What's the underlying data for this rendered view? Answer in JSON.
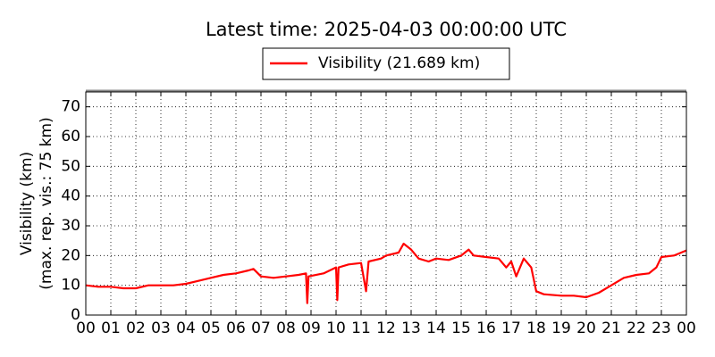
{
  "chart_data": {
    "type": "line",
    "title": "Latest time: 2025-04-03 00:00:00 UTC",
    "ylabel": [
      "Visibility (km)",
      "(max. rep. vis.: 75 km)"
    ],
    "x": [
      0,
      0.5,
      1,
      1.5,
      2,
      2.5,
      3,
      3.5,
      4,
      4.5,
      5,
      5.5,
      6,
      6.5,
      6.7,
      7,
      7.5,
      8,
      8.5,
      8.8,
      8.85,
      8.9,
      9.5,
      10,
      10.05,
      10.1,
      10.5,
      11,
      11.2,
      11.3,
      11.8,
      12,
      12.5,
      12.7,
      13,
      13.3,
      13.7,
      14,
      14.5,
      15,
      15.3,
      15.5,
      16,
      16.5,
      16.8,
      17,
      17.2,
      17.5,
      17.8,
      18,
      18.3,
      19,
      19.5,
      20,
      20.5,
      21,
      21.5,
      22,
      22.5,
      22.8,
      23,
      23.5,
      24
    ],
    "series": [
      {
        "name": "Visibility (21.689 km)",
        "color": "#ff0000",
        "values": [
          10,
          9.5,
          9.5,
          9,
          9,
          10,
          10,
          10,
          10.5,
          11.5,
          12.5,
          13.5,
          14,
          15,
          15.5,
          13,
          12.5,
          13,
          13.5,
          14,
          4,
          13,
          14,
          16,
          5,
          16,
          17,
          17.5,
          8,
          18,
          19,
          20,
          21,
          24,
          22,
          19,
          18,
          19,
          18.5,
          20,
          22,
          20,
          19.5,
          19,
          16,
          18,
          13,
          19,
          16,
          8,
          7,
          6.5,
          6.5,
          6,
          7.5,
          10,
          12.5,
          13.5,
          14,
          16,
          19.5,
          20,
          21.7
        ]
      }
    ],
    "xlim": [
      0,
      24
    ],
    "xticks": [
      {
        "value": 0,
        "label": "00"
      },
      {
        "value": 1,
        "label": "01"
      },
      {
        "value": 2,
        "label": "02"
      },
      {
        "value": 3,
        "label": "03"
      },
      {
        "value": 4,
        "label": "04"
      },
      {
        "value": 5,
        "label": "05"
      },
      {
        "value": 6,
        "label": "06"
      },
      {
        "value": 7,
        "label": "07"
      },
      {
        "value": 8,
        "label": "08"
      },
      {
        "value": 9,
        "label": "09"
      },
      {
        "value": 10,
        "label": "10"
      },
      {
        "value": 11,
        "label": "11"
      },
      {
        "value": 12,
        "label": "12"
      },
      {
        "value": 13,
        "label": "13"
      },
      {
        "value": 14,
        "label": "14"
      },
      {
        "value": 15,
        "label": "15"
      },
      {
        "value": 16,
        "label": "16"
      },
      {
        "value": 17,
        "label": "17"
      },
      {
        "value": 18,
        "label": "18"
      },
      {
        "value": 19,
        "label": "19"
      },
      {
        "value": 20,
        "label": "20"
      },
      {
        "value": 21,
        "label": "21"
      },
      {
        "value": 22,
        "label": "22"
      },
      {
        "value": 23,
        "label": "23"
      },
      {
        "value": 24,
        "label": "00"
      }
    ],
    "ylim": [
      0,
      75
    ],
    "yticks": [
      0,
      10,
      20,
      30,
      40,
      50,
      60,
      70
    ],
    "grid": true
  }
}
